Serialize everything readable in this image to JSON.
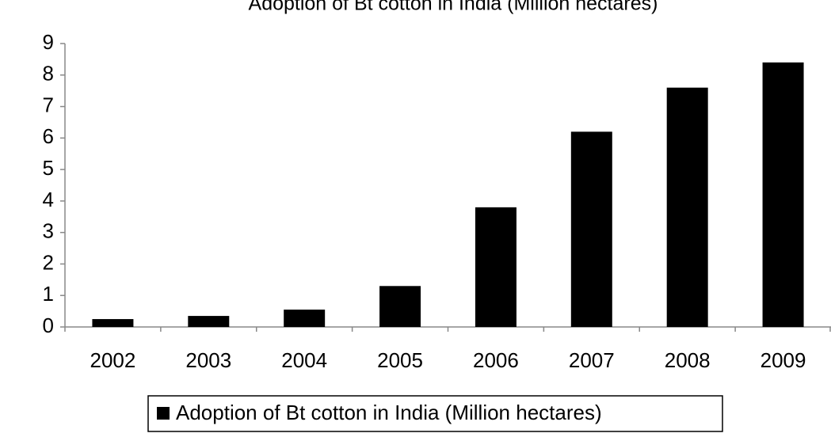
{
  "chart_data": {
    "type": "bar",
    "title": "Adoption of Bt cotton in India (Million hectares)",
    "categories": [
      "2002",
      "2003",
      "2004",
      "2005",
      "2006",
      "2007",
      "2008",
      "2009"
    ],
    "series": [
      {
        "name": "Adoption of Bt cotton in India (Million hectares)",
        "color": "#000000",
        "values": [
          0.25,
          0.35,
          0.55,
          1.3,
          3.8,
          6.2,
          7.6,
          8.4
        ]
      }
    ],
    "ylim": [
      0,
      9
    ],
    "yticks": [
      0,
      1,
      2,
      3,
      4,
      5,
      6,
      7,
      8,
      9
    ],
    "grid": false,
    "legend": "bottom"
  }
}
